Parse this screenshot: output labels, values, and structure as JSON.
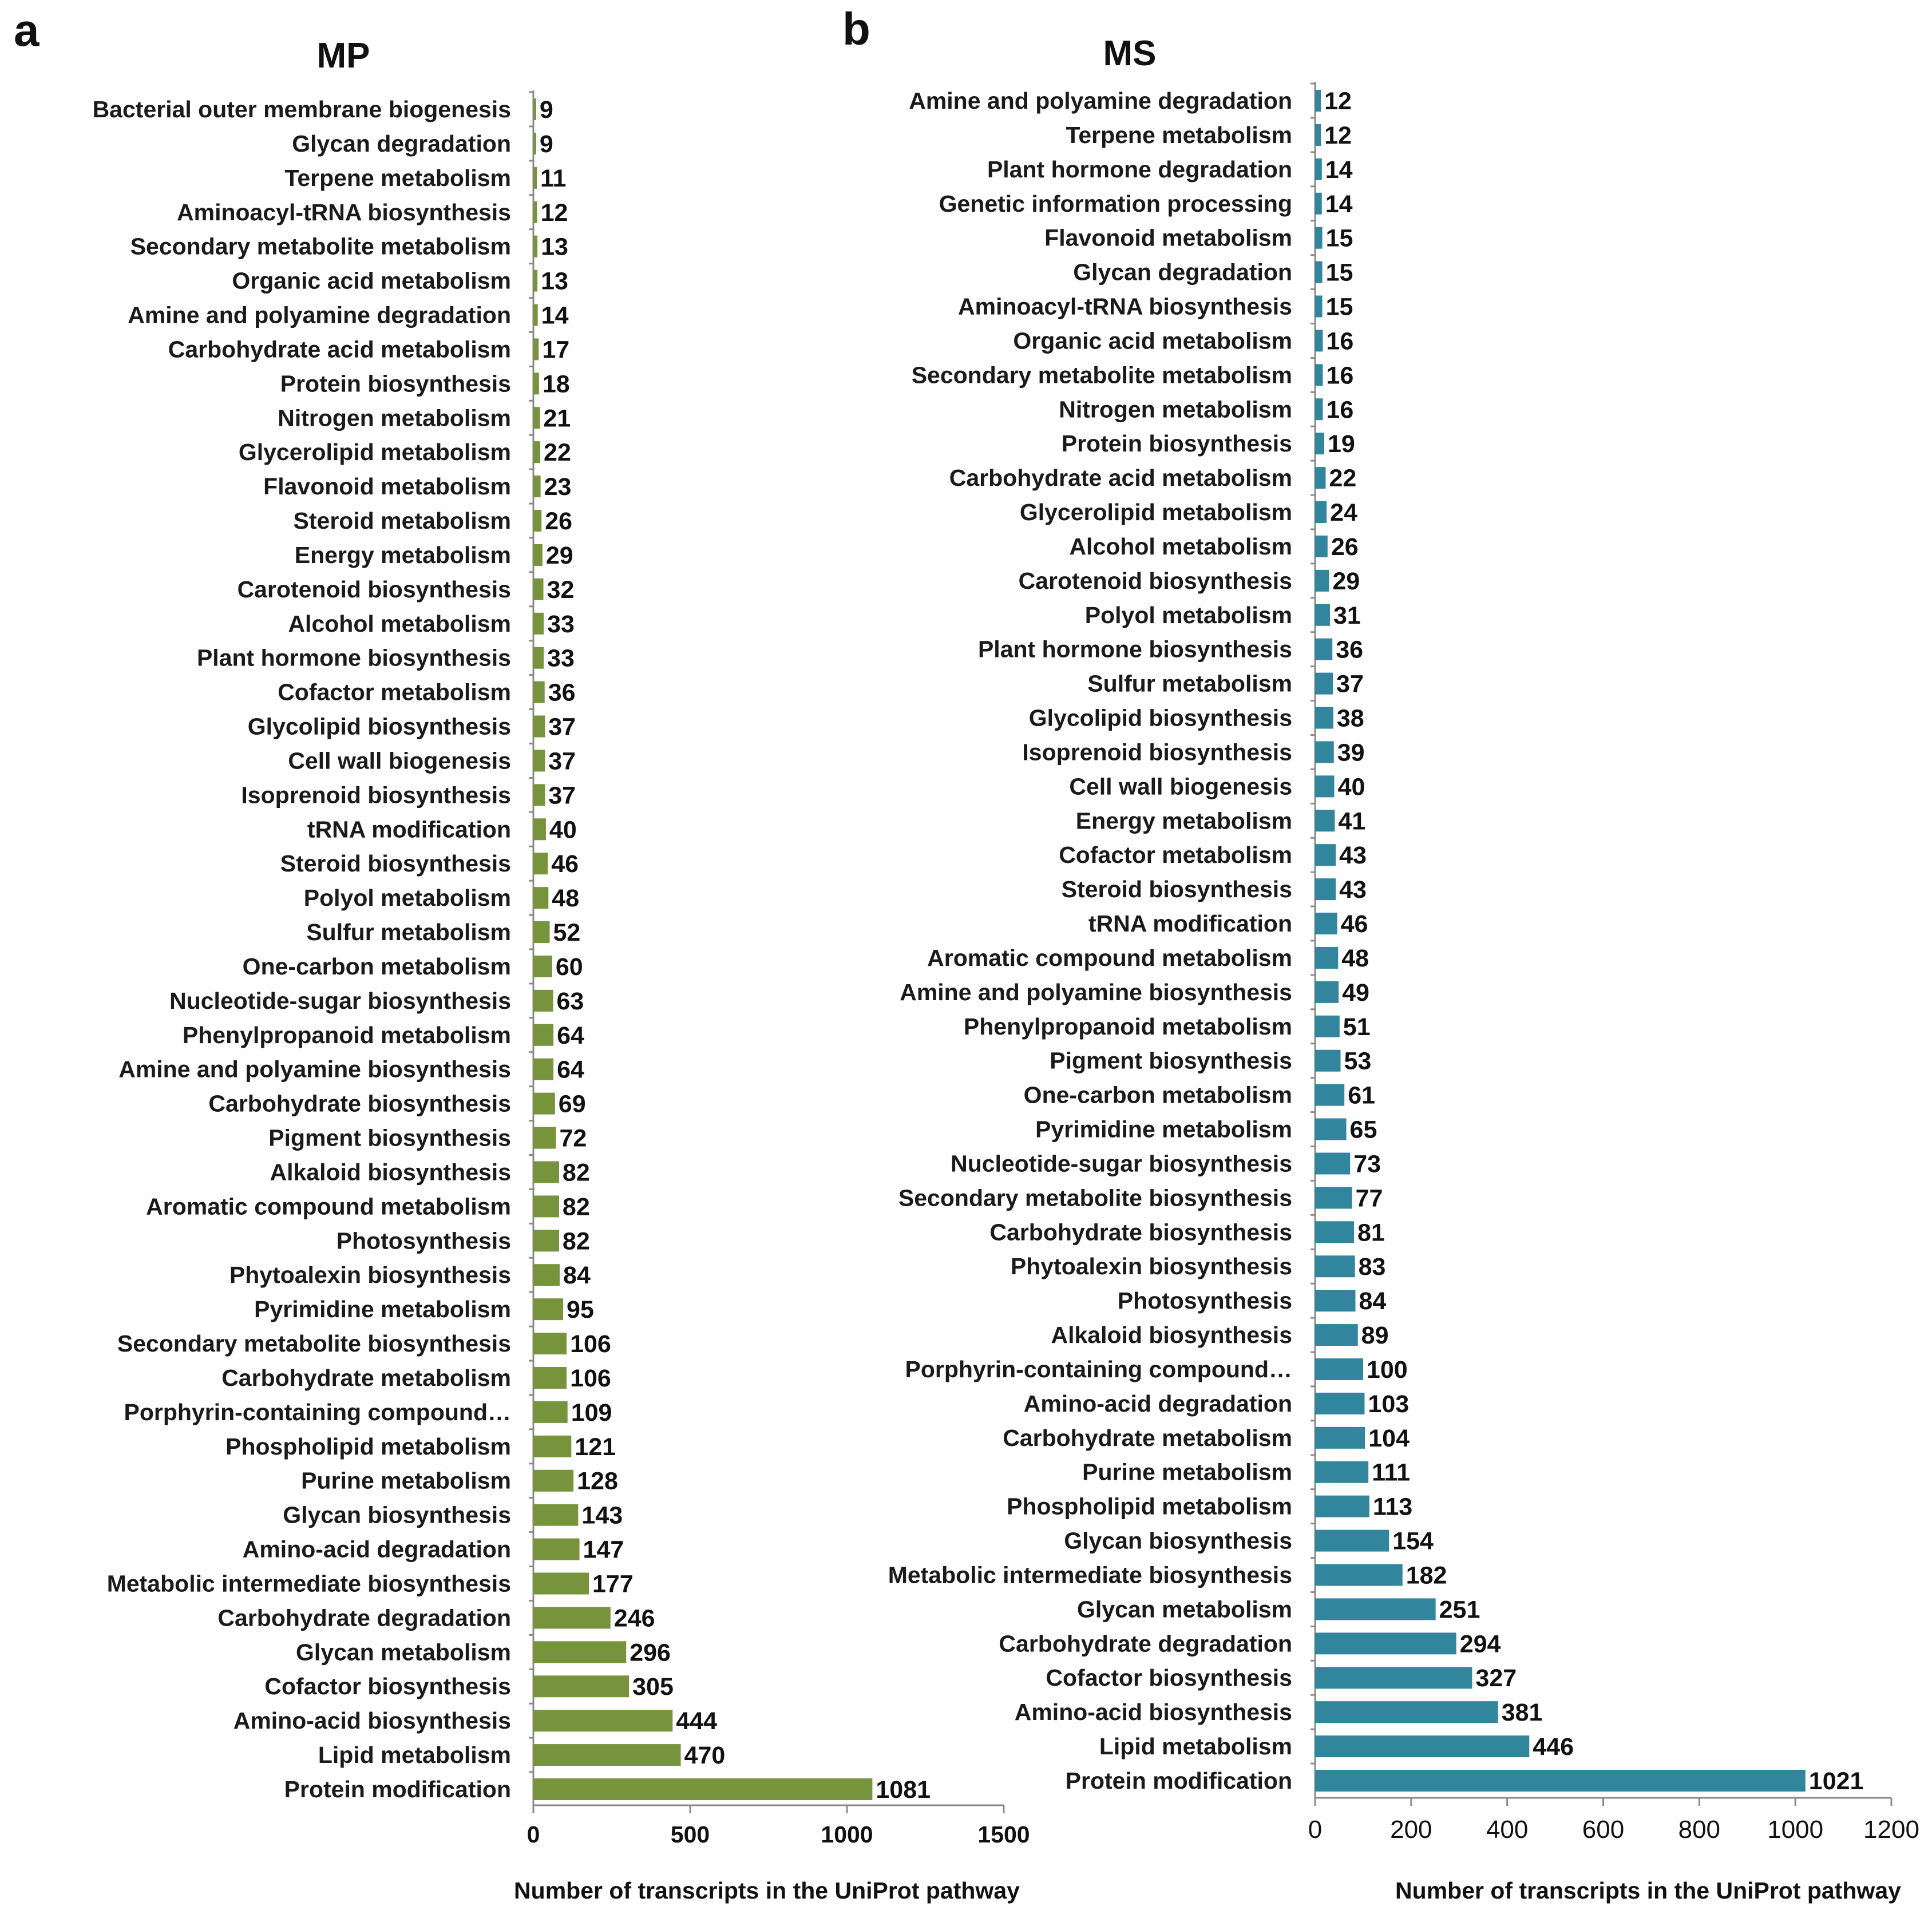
{
  "chart_data": [
    {
      "panel": "a",
      "type": "bar",
      "orientation": "horizontal",
      "title": "MP",
      "xlabel": "Number of transcripts in the UniProt pathway",
      "ylabel": "",
      "xlim": [
        0,
        1500
      ],
      "xticks": [
        0,
        500,
        1000,
        1500
      ],
      "grid": false,
      "color": "#77933c",
      "categories": [
        "Bacterial outer membrane biogenesis",
        "Glycan degradation",
        "Terpene metabolism",
        "Aminoacyl-tRNA biosynthesis",
        "Secondary metabolite metabolism",
        "Organic acid metabolism",
        "Amine and polyamine degradation",
        "Carbohydrate acid metabolism",
        "Protein biosynthesis",
        "Nitrogen metabolism",
        "Glycerolipid metabolism",
        "Flavonoid metabolism",
        "Steroid metabolism",
        "Energy metabolism",
        "Carotenoid biosynthesis",
        "Alcohol metabolism",
        "Plant hormone biosynthesis",
        "Cofactor metabolism",
        "Glycolipid biosynthesis",
        "Cell wall biogenesis",
        "Isoprenoid biosynthesis",
        "tRNA modification",
        "Steroid biosynthesis",
        "Polyol metabolism",
        "Sulfur metabolism",
        "One-carbon metabolism",
        "Nucleotide-sugar biosynthesis",
        "Phenylpropanoid metabolism",
        "Amine and polyamine biosynthesis",
        "Carbohydrate biosynthesis",
        "Pigment biosynthesis",
        "Alkaloid biosynthesis",
        "Aromatic compound metabolism",
        "Photosynthesis",
        "Phytoalexin biosynthesis",
        "Pyrimidine metabolism",
        "Secondary metabolite biosynthesis",
        "Carbohydrate metabolism",
        "Porphyrin-containing compound…",
        "Phospholipid metabolism",
        "Purine metabolism",
        "Glycan biosynthesis",
        "Amino-acid degradation",
        "Metabolic intermediate biosynthesis",
        "Carbohydrate degradation",
        "Glycan metabolism",
        "Cofactor biosynthesis",
        "Amino-acid biosynthesis",
        "Lipid metabolism",
        "Protein modification"
      ],
      "values": [
        9,
        9,
        11,
        12,
        13,
        13,
        14,
        17,
        18,
        21,
        22,
        23,
        26,
        29,
        32,
        33,
        33,
        36,
        37,
        37,
        37,
        40,
        46,
        48,
        52,
        60,
        63,
        64,
        64,
        69,
        72,
        82,
        82,
        82,
        84,
        95,
        106,
        106,
        109,
        121,
        128,
        143,
        147,
        177,
        246,
        296,
        305,
        444,
        470,
        1081
      ]
    },
    {
      "panel": "b",
      "type": "bar",
      "orientation": "horizontal",
      "title": "MS",
      "xlabel": "Number of transcripts in the UniProt pathway",
      "ylabel": "",
      "xlim": [
        0,
        1200
      ],
      "xticks": [
        0,
        200,
        400,
        600,
        800,
        1000,
        1200
      ],
      "grid": false,
      "color": "#31859c",
      "categories": [
        "Amine and polyamine degradation",
        "Terpene metabolism",
        "Plant hormone degradation",
        "Genetic information processing",
        "Flavonoid metabolism",
        "Glycan degradation",
        "Aminoacyl-tRNA biosynthesis",
        "Organic acid metabolism",
        "Secondary metabolite metabolism",
        "Nitrogen metabolism",
        "Protein biosynthesis",
        "Carbohydrate acid metabolism",
        "Glycerolipid metabolism",
        "Alcohol metabolism",
        "Carotenoid biosynthesis",
        "Polyol metabolism",
        "Plant hormone biosynthesis",
        "Sulfur metabolism",
        "Glycolipid biosynthesis",
        "Isoprenoid biosynthesis",
        "Cell wall biogenesis",
        "Energy metabolism",
        "Cofactor metabolism",
        "Steroid biosynthesis",
        "tRNA modification",
        "Aromatic compound metabolism",
        "Amine and polyamine biosynthesis",
        "Phenylpropanoid metabolism",
        "Pigment biosynthesis",
        "One-carbon metabolism",
        "Pyrimidine metabolism",
        "Nucleotide-sugar biosynthesis",
        "Secondary metabolite biosynthesis",
        "Carbohydrate biosynthesis",
        "Phytoalexin biosynthesis",
        "Photosynthesis",
        "Alkaloid biosynthesis",
        "Porphyrin-containing compound…",
        "Amino-acid degradation",
        "Carbohydrate metabolism",
        "Purine metabolism",
        "Phospholipid metabolism",
        "Glycan biosynthesis",
        "Metabolic intermediate biosynthesis",
        "Glycan metabolism",
        "Carbohydrate degradation",
        "Cofactor biosynthesis",
        "Amino-acid biosynthesis",
        "Lipid metabolism",
        "Protein modification"
      ],
      "values": [
        12,
        12,
        14,
        14,
        15,
        15,
        15,
        16,
        16,
        16,
        19,
        22,
        24,
        26,
        29,
        31,
        36,
        37,
        38,
        39,
        40,
        41,
        43,
        43,
        46,
        48,
        49,
        51,
        53,
        61,
        65,
        73,
        77,
        81,
        83,
        84,
        89,
        100,
        103,
        104,
        111,
        113,
        154,
        182,
        251,
        294,
        327,
        381,
        446,
        1021
      ]
    }
  ]
}
